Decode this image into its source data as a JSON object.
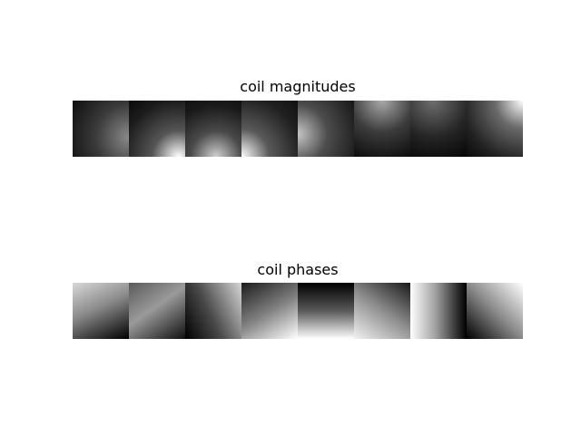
{
  "panels": {
    "magnitudes": {
      "title": "coil magnitudes",
      "tile_count": 8
    },
    "phases": {
      "title": "coil phases",
      "tile_count": 8
    }
  },
  "colormap": "gray"
}
